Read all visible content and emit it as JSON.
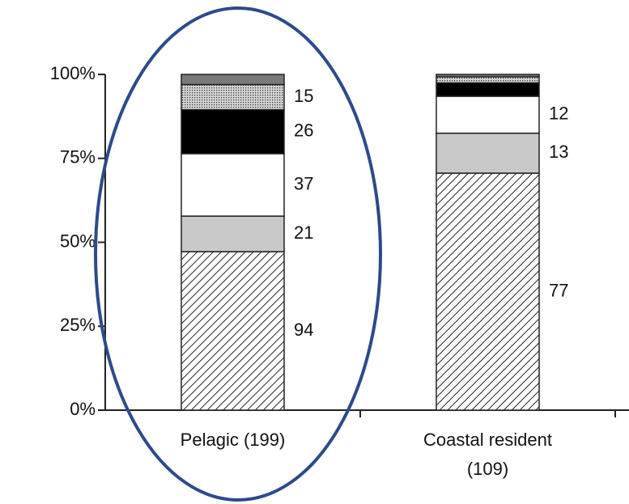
{
  "chart_data": {
    "type": "stacked_bar",
    "categories": [
      [
        "Pelagic (199)"
      ],
      [
        "Coastal resident",
        "(109)"
      ]
    ],
    "series": [
      {
        "color": "#ffffff",
        "pattern": "hatch",
        "values": [
          47.2,
          70.6
        ],
        "counts": [
          94,
          77
        ]
      },
      {
        "color": "#c8c8c8",
        "pattern": null,
        "values": [
          10.6,
          11.9
        ],
        "counts": [
          21,
          13
        ]
      },
      {
        "color": "#ffffff",
        "pattern": null,
        "values": [
          18.6,
          11.0
        ],
        "counts": [
          37,
          12
        ]
      },
      {
        "color": "#000000",
        "pattern": null,
        "values": [
          13.1,
          4.0
        ],
        "counts": [
          26,
          null
        ]
      },
      {
        "color": "#bdbdbd",
        "pattern": "dots",
        "values": [
          7.5,
          1.8
        ],
        "counts": [
          15,
          null
        ]
      },
      {
        "color": "#7a7a7a",
        "pattern": null,
        "values": [
          3.0,
          0.7
        ],
        "counts": [
          null,
          null
        ]
      }
    ],
    "ylim": [
      0,
      100
    ],
    "yticks": [
      {
        "value": 0,
        "label": "0%"
      },
      {
        "value": 25,
        "label": "25%"
      },
      {
        "value": 50,
        "label": "50%"
      },
      {
        "value": 75,
        "label": "75%"
      },
      {
        "value": 100,
        "label": "100%"
      }
    ]
  }
}
